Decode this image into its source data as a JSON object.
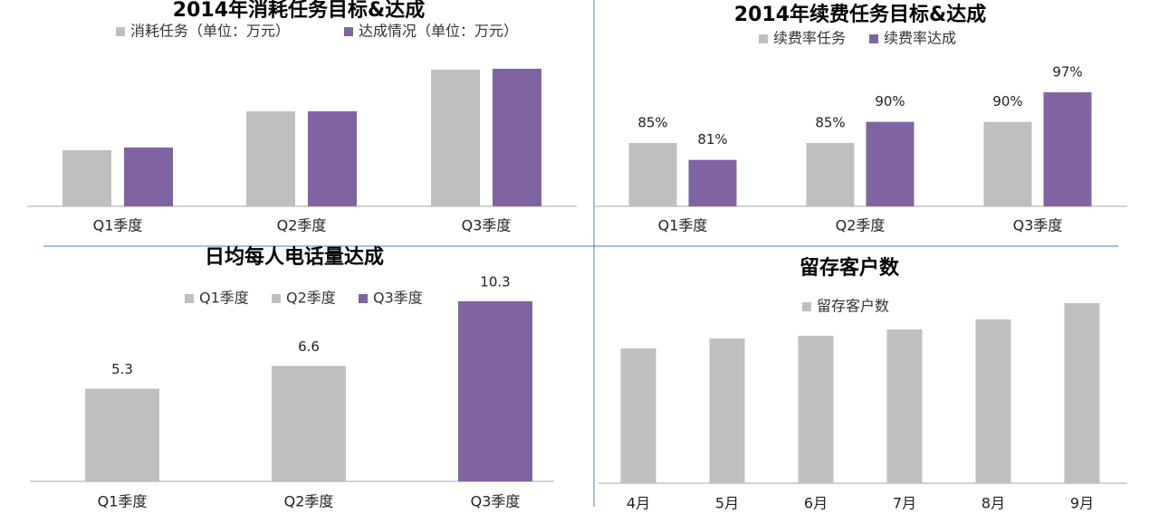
{
  "chart_data": [
    {
      "type": "bar",
      "title": "2014年消耗任务目标&达成",
      "categories": [
        "Q1季度",
        "Q2季度",
        "Q3季度"
      ],
      "series": [
        {
          "name": "消耗任务（单位：万元）",
          "color": "#bfbfbf",
          "values": [
            62,
            105,
            151
          ]
        },
        {
          "name": "达成情况（单位：万元）",
          "color": "#8064a2",
          "values": [
            65,
            105,
            152
          ]
        }
      ],
      "ylim": [
        0,
        168
      ]
    },
    {
      "type": "bar",
      "title": "2014年续费任务目标&达成",
      "categories": [
        "Q1季度",
        "Q2季度",
        "Q3季度"
      ],
      "series": [
        {
          "name": "续费率任务",
          "color": "#bfbfbf",
          "values": [
            85,
            85,
            90
          ],
          "value_labels": [
            "85%",
            "85%",
            "90%"
          ]
        },
        {
          "name": "续费率达成",
          "color": "#8064a2",
          "values": [
            81,
            90,
            97
          ],
          "value_labels": [
            "81%",
            "90%",
            "97%"
          ]
        }
      ],
      "ylim": [
        70,
        106
      ]
    },
    {
      "type": "colorbar",
      "title": "日均每人电话量达成",
      "categories": [
        "Q1季度",
        "Q2季度",
        "Q3季度"
      ],
      "values": [
        5.3,
        6.6,
        10.3
      ],
      "colors": [
        "#bfbfbf",
        "#bfbfbf",
        "#8064a2"
      ],
      "ylim": [
        0,
        12
      ]
    },
    {
      "type": "bar",
      "title": "留存客户数",
      "categories": [
        "4月",
        "5月",
        "6月",
        "7月",
        "8月",
        "9月"
      ],
      "series": [
        {
          "name": "留存客户数",
          "color": "#bfbfbf",
          "values": [
            149,
            160,
            163,
            170,
            181,
            199
          ]
        }
      ],
      "ylim": [
        0,
        230
      ]
    }
  ]
}
